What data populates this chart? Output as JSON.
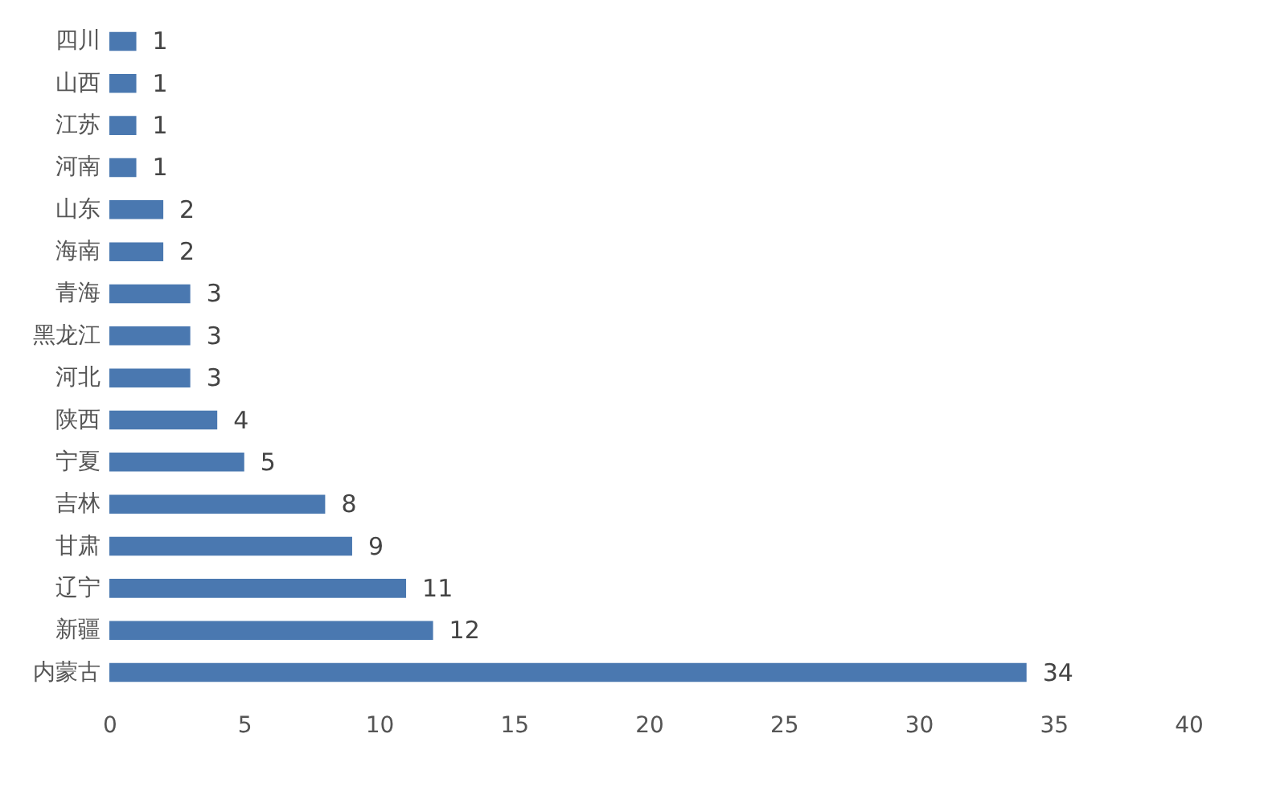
{
  "chart_data": {
    "type": "bar",
    "orientation": "horizontal",
    "categories": [
      "四川",
      "山西",
      "江苏",
      "河南",
      "山东",
      "海南",
      "青海",
      "黑龙江",
      "河北",
      "陕西",
      "宁夏",
      "吉林",
      "甘肃",
      "辽宁",
      "新疆",
      "内蒙古"
    ],
    "values": [
      1,
      1,
      1,
      1,
      2,
      2,
      3,
      3,
      3,
      4,
      5,
      8,
      9,
      11,
      12,
      34
    ],
    "color": "#4a78b0",
    "xlim": [
      0,
      40
    ],
    "xticks": [
      0,
      5,
      10,
      15,
      20,
      25,
      30,
      35,
      40
    ],
    "grid": false,
    "data_labels": true
  }
}
